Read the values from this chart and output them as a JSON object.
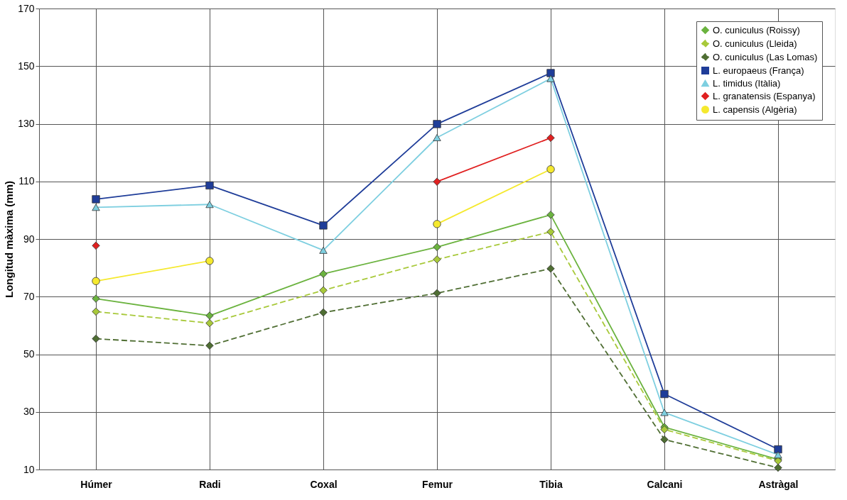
{
  "chart_data": {
    "type": "line",
    "ylabel": "Longitud màxima (mm)",
    "categories": [
      "Húmer",
      "Radi",
      "Coxal",
      "Femur",
      "Tibia",
      "Calcani",
      "Astràgal"
    ],
    "ylim": [
      10,
      170
    ],
    "yticks": [
      10,
      30,
      50,
      70,
      90,
      110,
      130,
      150,
      170
    ],
    "grid": true,
    "legend": "top right",
    "series": [
      {
        "name": "O. cuniculus (Roissy)",
        "color": "#6bb33f",
        "marker": "diamond",
        "line_style": "solid",
        "values": [
          69.3,
          63.4,
          77.9,
          87.2,
          98.4,
          24.7,
          13.5
        ]
      },
      {
        "name": "O. cuniculus (Lleida)",
        "color": "#a8c93a",
        "marker": "diamond",
        "line_style": "dashed",
        "values": [
          64.8,
          60.8,
          72.2,
          82.9,
          92.5,
          23.9,
          13
        ]
      },
      {
        "name": "O. cuniculus (Las Lomas)",
        "color": "#4f6e33",
        "marker": "diamond",
        "line_style": "dashed",
        "values": [
          55.4,
          53,
          64.5,
          71.2,
          79.7,
          20.4,
          10.6
        ]
      },
      {
        "name": "L. europaeus (França)",
        "color": "#1f3d99",
        "marker": "square",
        "line_style": "solid",
        "values": [
          103.8,
          108.6,
          94.7,
          129.9,
          147.6,
          36.2,
          17
        ]
      },
      {
        "name": "L. timidus (Itàlia)",
        "color": "#7ecfe0",
        "marker": "triangle",
        "line_style": "solid",
        "values": [
          101,
          102,
          86.1,
          125.2,
          145.7,
          29.8,
          15.1
        ]
      },
      {
        "name": "L. granatensis (Espanya)",
        "color": "#e02020",
        "marker": "diamond",
        "line_style": "solid",
        "values": [
          87.7,
          null,
          null,
          109.9,
          125.1,
          null,
          null
        ]
      },
      {
        "name": "L. capensis (Algèria)",
        "color": "#f5e92e",
        "marker": "circle",
        "line_style": "solid",
        "values": [
          75.4,
          82.4,
          null,
          95.2,
          114.2,
          null,
          null
        ]
      }
    ]
  }
}
